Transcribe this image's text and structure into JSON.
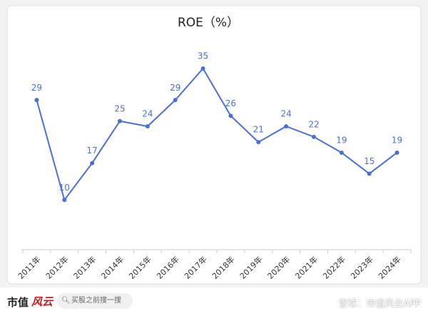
{
  "chart_data": {
    "type": "line",
    "title": "ROE（%）",
    "categories": [
      "2011年",
      "2012年",
      "2013年",
      "2014年",
      "2015年",
      "2016年",
      "2017年",
      "2018年",
      "2019年",
      "2020年",
      "2021年",
      "2022年",
      "2023年",
      "2024年"
    ],
    "series": [
      {
        "name": "ROE",
        "color": "#4a6fd8",
        "values": [
          29,
          10,
          17,
          25,
          24,
          29,
          35,
          26,
          21,
          24,
          22,
          19,
          15,
          19
        ]
      }
    ]
  },
  "footer": {
    "logo": "市值",
    "logo_mark": "风云",
    "search": "买股之前搜一搜",
    "source": "雪球：市值风云APP"
  }
}
